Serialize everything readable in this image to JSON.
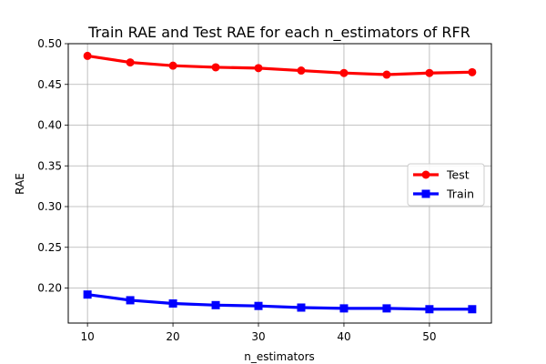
{
  "chart_data": {
    "type": "line",
    "title": "Train RAE and Test RAE for each n_estimators of RFR",
    "xlabel": "n_estimators",
    "ylabel": "RAE",
    "x": [
      10,
      15,
      20,
      25,
      30,
      35,
      40,
      45,
      50,
      55
    ],
    "xlim": [
      7.75,
      57.25
    ],
    "ylim": [
      0.157,
      0.5
    ],
    "xticks": [
      10,
      20,
      30,
      40,
      50
    ],
    "yticks": [
      0.2,
      0.25,
      0.3,
      0.35,
      0.4,
      0.45,
      0.5
    ],
    "xtick_labels": [
      "10",
      "20",
      "30",
      "40",
      "50"
    ],
    "ytick_labels": [
      "0.20",
      "0.25",
      "0.30",
      "0.35",
      "0.40",
      "0.45",
      "0.50"
    ],
    "grid": true,
    "legend_position": "center-right",
    "series": [
      {
        "name": "Test",
        "color": "#ff0000",
        "marker": "circle",
        "values": [
          0.485,
          0.477,
          0.473,
          0.471,
          0.47,
          0.467,
          0.464,
          0.462,
          0.464,
          0.465
        ]
      },
      {
        "name": "Train",
        "color": "#0000ff",
        "marker": "square",
        "values": [
          0.192,
          0.185,
          0.181,
          0.179,
          0.178,
          0.176,
          0.175,
          0.175,
          0.174,
          0.174
        ]
      }
    ]
  }
}
